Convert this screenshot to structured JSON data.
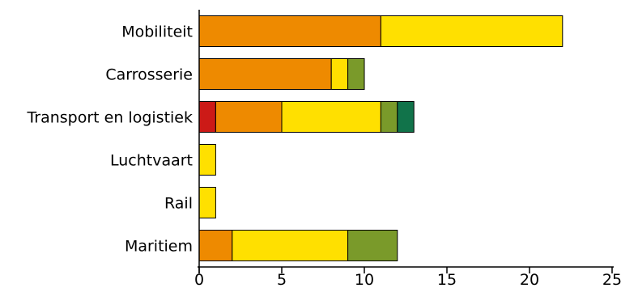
{
  "chart_data": {
    "type": "bar",
    "orientation": "horizontal",
    "stacked": true,
    "categories": [
      "Mobiliteit",
      "Carrosserie",
      "Transport en logistiek",
      "Luchtvaart",
      "Rail",
      "Maritiem"
    ],
    "series": [
      {
        "color": "#cc1a17",
        "values": [
          0,
          0,
          1,
          0,
          0,
          0
        ]
      },
      {
        "color": "#ee8a00",
        "values": [
          11,
          8,
          4,
          0,
          0,
          2
        ]
      },
      {
        "color": "#ffe000",
        "values": [
          11,
          1,
          6,
          1,
          1,
          7
        ]
      },
      {
        "color": "#7a9a2a",
        "values": [
          0,
          1,
          1,
          0,
          0,
          3
        ]
      },
      {
        "color": "#11734a",
        "values": [
          0,
          0,
          1,
          0,
          0,
          0
        ]
      }
    ],
    "xlim": [
      0,
      25
    ],
    "xticks": [
      0,
      5,
      10,
      15,
      20,
      25
    ],
    "grid": false,
    "legend": "none",
    "title": "",
    "xlabel": "",
    "ylabel": ""
  }
}
